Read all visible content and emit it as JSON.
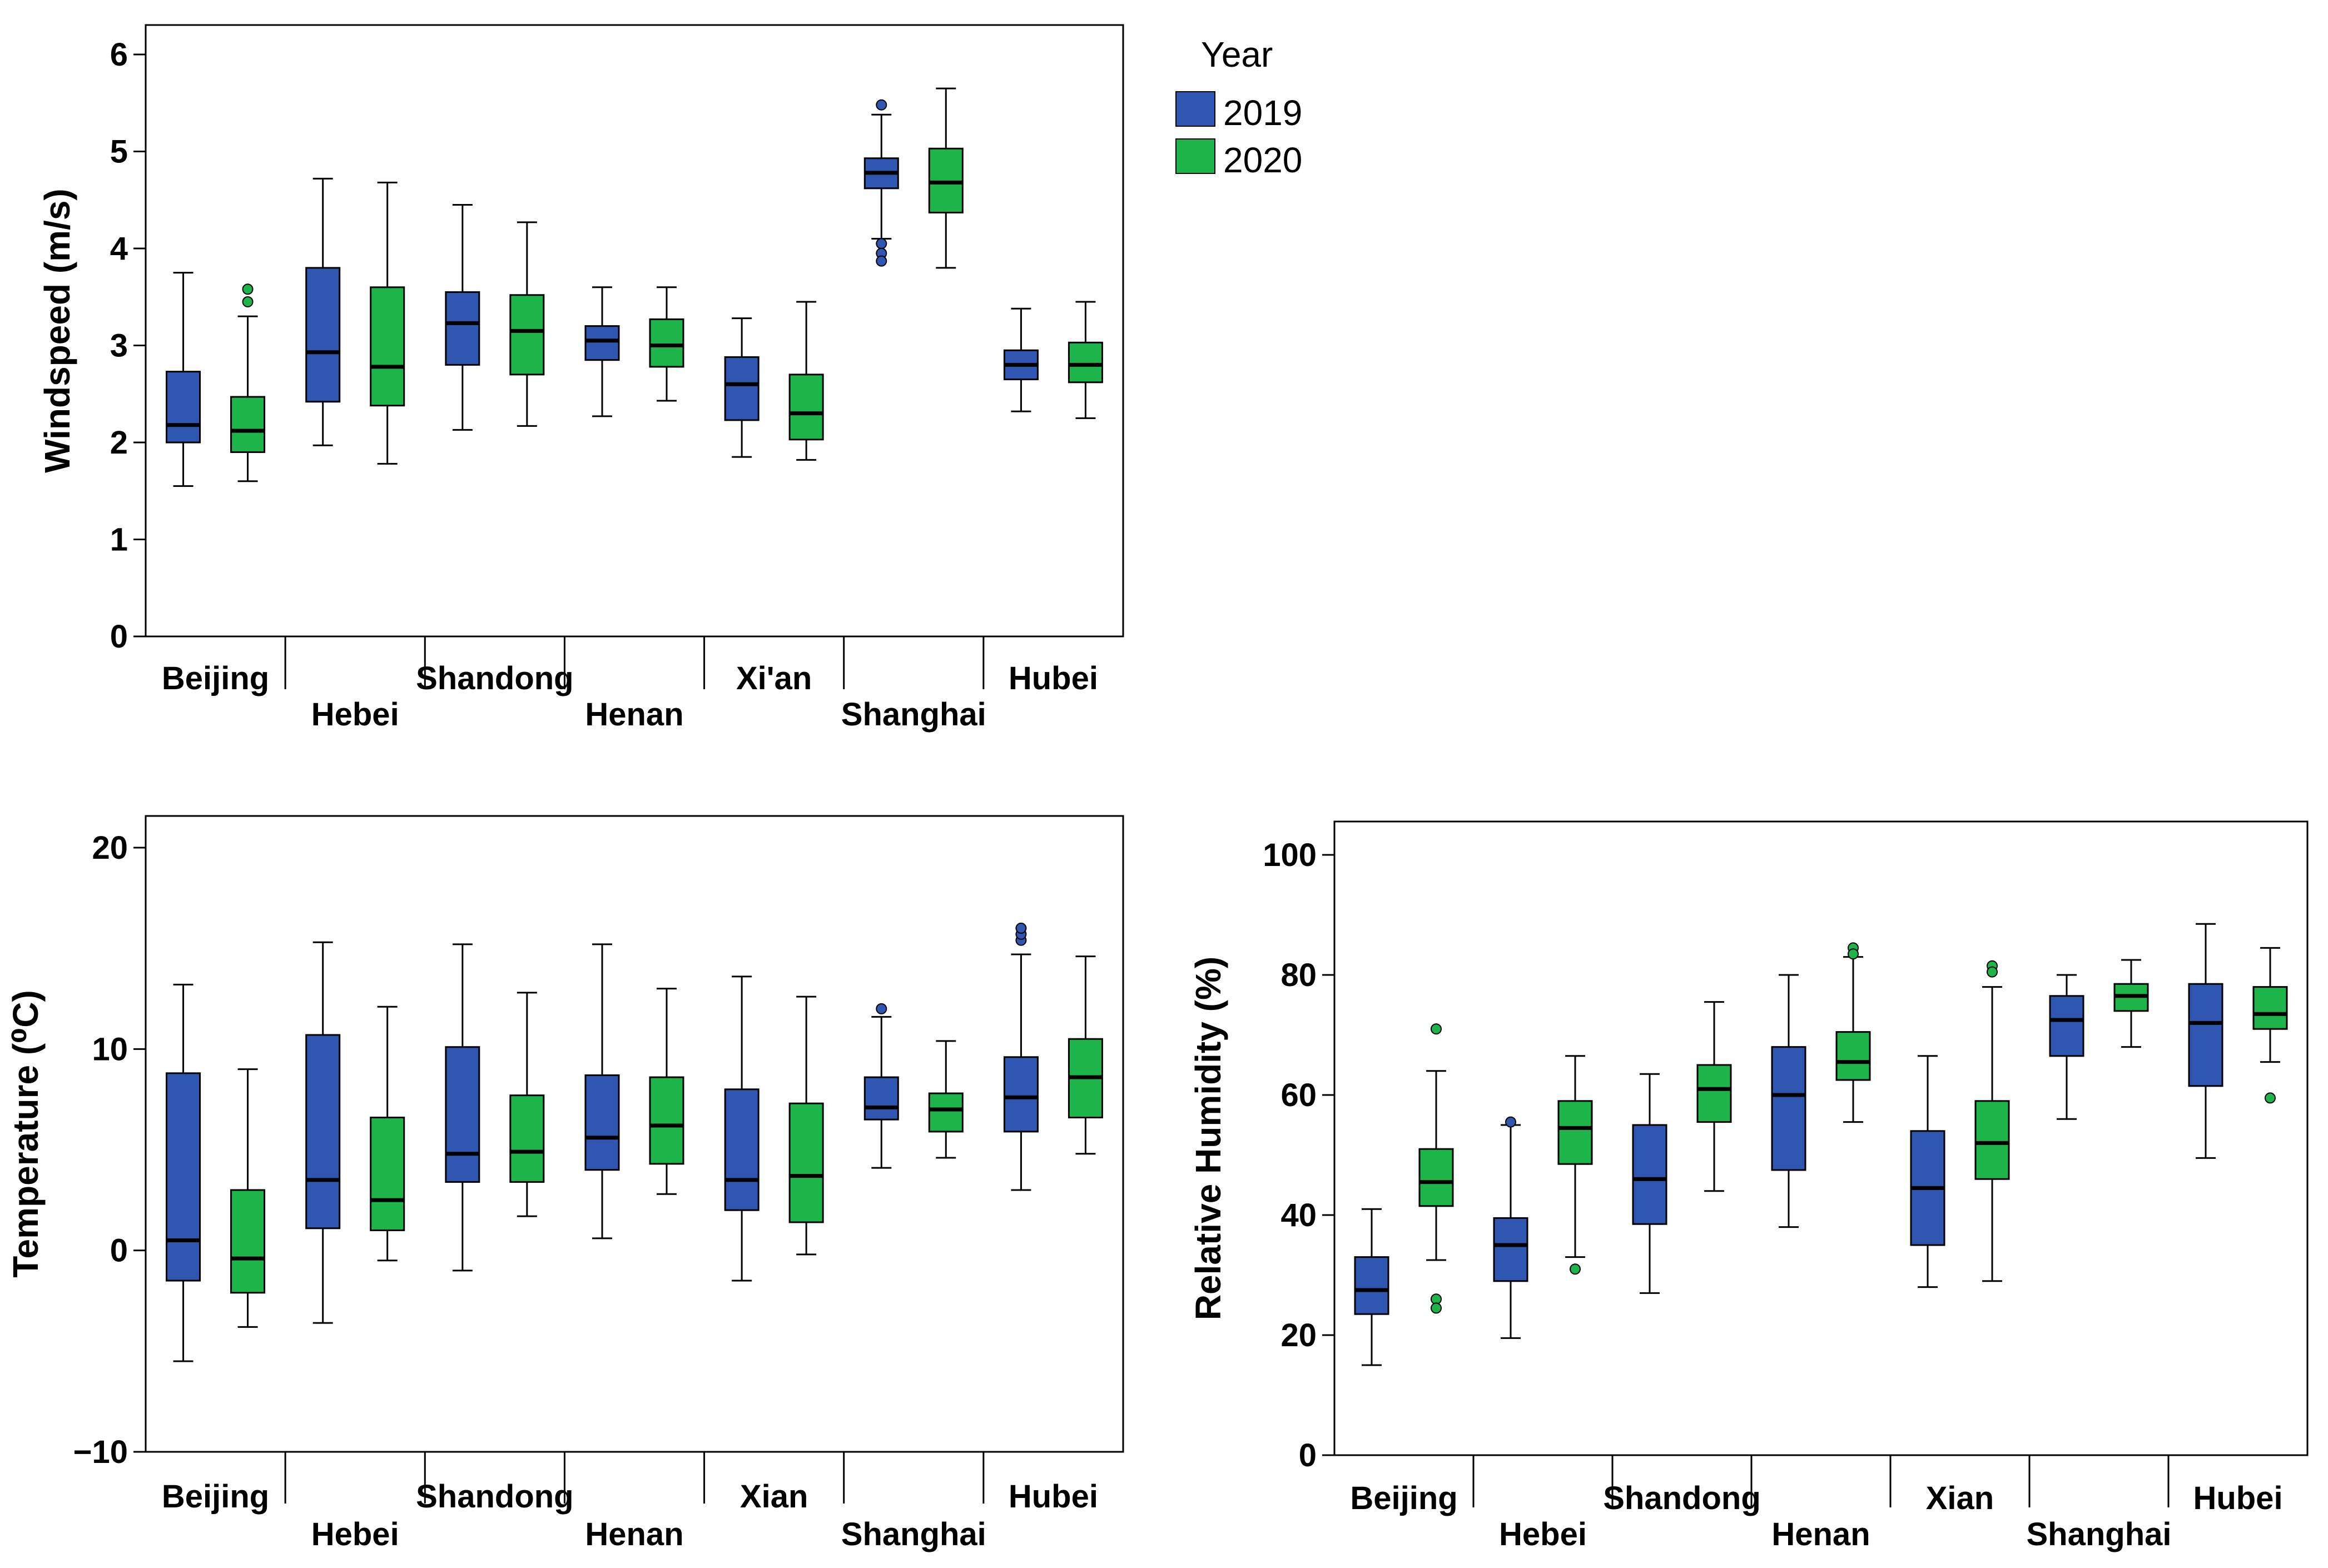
{
  "legend": {
    "title": "Year",
    "items": [
      {
        "label": "2019",
        "color": "#2F56B0"
      },
      {
        "label": "2020",
        "color": "#1DB54A"
      }
    ]
  },
  "chart_data": [
    {
      "type": "boxplot",
      "id": "windspeed",
      "ylabel": "Windspeed (m/s)",
      "xlabel": "",
      "ylim": [
        0,
        6
      ],
      "yticks": [
        0,
        1,
        2,
        3,
        4,
        5,
        6
      ],
      "categories": [
        "Beijing",
        "Hebei",
        "Shandong",
        "Henan",
        "Xi'an",
        "Shanghai",
        "Hubei"
      ],
      "series": [
        {
          "name": "2019",
          "boxes": [
            {
              "min": 1.55,
              "q1": 2.0,
              "median": 2.18,
              "q3": 2.73,
              "max": 3.75,
              "outliers": []
            },
            {
              "min": 1.97,
              "q1": 2.42,
              "median": 2.93,
              "q3": 3.8,
              "max": 4.72,
              "outliers": []
            },
            {
              "min": 2.13,
              "q1": 2.8,
              "median": 3.23,
              "q3": 3.55,
              "max": 4.45,
              "outliers": []
            },
            {
              "min": 2.27,
              "q1": 2.85,
              "median": 3.05,
              "q3": 3.2,
              "max": 3.6,
              "outliers": []
            },
            {
              "min": 1.85,
              "q1": 2.23,
              "median": 2.6,
              "q3": 2.88,
              "max": 3.28,
              "outliers": []
            },
            {
              "min": 4.1,
              "q1": 4.62,
              "median": 4.78,
              "q3": 4.93,
              "max": 5.38,
              "outliers": [
                5.48,
                4.05,
                3.95,
                3.87
              ]
            },
            {
              "min": 2.32,
              "q1": 2.65,
              "median": 2.8,
              "q3": 2.95,
              "max": 3.38,
              "outliers": []
            }
          ]
        },
        {
          "name": "2020",
          "boxes": [
            {
              "min": 1.6,
              "q1": 1.9,
              "median": 2.12,
              "q3": 2.47,
              "max": 3.3,
              "outliers": [
                3.45,
                3.58
              ]
            },
            {
              "min": 1.78,
              "q1": 2.38,
              "median": 2.78,
              "q3": 3.6,
              "max": 4.68,
              "outliers": []
            },
            {
              "min": 2.17,
              "q1": 2.7,
              "median": 3.15,
              "q3": 3.52,
              "max": 4.27,
              "outliers": []
            },
            {
              "min": 2.43,
              "q1": 2.78,
              "median": 3.0,
              "q3": 3.27,
              "max": 3.6,
              "outliers": []
            },
            {
              "min": 1.82,
              "q1": 2.03,
              "median": 2.3,
              "q3": 2.7,
              "max": 3.45,
              "outliers": []
            },
            {
              "min": 3.8,
              "q1": 4.37,
              "median": 4.68,
              "q3": 5.03,
              "max": 5.65,
              "outliers": []
            },
            {
              "min": 2.25,
              "q1": 2.62,
              "median": 2.8,
              "q3": 3.03,
              "max": 3.45,
              "outliers": []
            }
          ]
        }
      ]
    },
    {
      "type": "boxplot",
      "id": "temperature",
      "ylabel": "Temperature (⁰C)",
      "xlabel": "",
      "ylim": [
        -10,
        20
      ],
      "yticks": [
        -10,
        0,
        10,
        20
      ],
      "categories": [
        "Beijing",
        "Hebei",
        "Shandong",
        "Henan",
        "Xian",
        "Shanghai",
        "Hubei"
      ],
      "series": [
        {
          "name": "2019",
          "boxes": [
            {
              "min": -5.5,
              "q1": -1.5,
              "median": 0.5,
              "q3": 8.8,
              "max": 13.2,
              "outliers": []
            },
            {
              "min": -3.6,
              "q1": 1.1,
              "median": 3.5,
              "q3": 10.7,
              "max": 15.3,
              "outliers": []
            },
            {
              "min": -1.0,
              "q1": 3.4,
              "median": 4.8,
              "q3": 10.1,
              "max": 15.2,
              "outliers": []
            },
            {
              "min": 0.6,
              "q1": 4.0,
              "median": 5.6,
              "q3": 8.7,
              "max": 15.2,
              "outliers": []
            },
            {
              "min": -1.5,
              "q1": 2.0,
              "median": 3.5,
              "q3": 8.0,
              "max": 13.6,
              "outliers": []
            },
            {
              "min": 4.1,
              "q1": 6.5,
              "median": 7.1,
              "q3": 8.6,
              "max": 11.6,
              "outliers": [
                12.0
              ]
            },
            {
              "min": 3.0,
              "q1": 5.9,
              "median": 7.6,
              "q3": 9.6,
              "max": 14.7,
              "outliers": [
                15.4,
                15.7,
                16.0
              ]
            }
          ]
        },
        {
          "name": "2020",
          "boxes": [
            {
              "min": -3.8,
              "q1": -2.1,
              "median": -0.4,
              "q3": 3.0,
              "max": 9.0,
              "outliers": []
            },
            {
              "min": -0.5,
              "q1": 1.0,
              "median": 2.5,
              "q3": 6.6,
              "max": 12.1,
              "outliers": []
            },
            {
              "min": 1.7,
              "q1": 3.4,
              "median": 4.9,
              "q3": 7.7,
              "max": 12.8,
              "outliers": []
            },
            {
              "min": 2.8,
              "q1": 4.3,
              "median": 6.2,
              "q3": 8.6,
              "max": 13.0,
              "outliers": []
            },
            {
              "min": -0.2,
              "q1": 1.4,
              "median": 3.7,
              "q3": 7.3,
              "max": 12.6,
              "outliers": []
            },
            {
              "min": 4.6,
              "q1": 5.9,
              "median": 7.0,
              "q3": 7.8,
              "max": 10.4,
              "outliers": []
            },
            {
              "min": 4.8,
              "q1": 6.6,
              "median": 8.6,
              "q3": 10.5,
              "max": 14.6,
              "outliers": []
            }
          ]
        }
      ]
    },
    {
      "type": "boxplot",
      "id": "humidity",
      "ylabel": "Relative Humidity (%)",
      "xlabel": "",
      "ylim": [
        0,
        100
      ],
      "yticks": [
        0,
        20,
        40,
        60,
        80,
        100
      ],
      "categories": [
        "Beijing",
        "Hebei",
        "Shandong",
        "Henan",
        "Xian",
        "Shanghai",
        "Hubei"
      ],
      "series": [
        {
          "name": "2019",
          "boxes": [
            {
              "min": 15,
              "q1": 23.5,
              "median": 27.5,
              "q3": 33,
              "max": 41,
              "outliers": []
            },
            {
              "min": 19.5,
              "q1": 29,
              "median": 35,
              "q3": 39.5,
              "max": 55,
              "outliers": [
                55.5
              ]
            },
            {
              "min": 27,
              "q1": 38.5,
              "median": 46,
              "q3": 55,
              "max": 63.5,
              "outliers": []
            },
            {
              "min": 38,
              "q1": 47.5,
              "median": 60,
              "q3": 68,
              "max": 80,
              "outliers": []
            },
            {
              "min": 28,
              "q1": 35,
              "median": 44.5,
              "q3": 54,
              "max": 66.5,
              "outliers": []
            },
            {
              "min": 56,
              "q1": 66.5,
              "median": 72.5,
              "q3": 76.5,
              "max": 80,
              "outliers": []
            },
            {
              "min": 49.5,
              "q1": 61.5,
              "median": 72,
              "q3": 78.5,
              "max": 88.5,
              "outliers": []
            }
          ]
        },
        {
          "name": "2020",
          "boxes": [
            {
              "min": 32.5,
              "q1": 41.5,
              "median": 45.5,
              "q3": 51,
              "max": 64,
              "outliers": [
                71,
                26,
                24.5
              ]
            },
            {
              "min": 33,
              "q1": 48.5,
              "median": 54.5,
              "q3": 59,
              "max": 66.5,
              "outliers": [
                31
              ]
            },
            {
              "min": 44,
              "q1": 55.5,
              "median": 61,
              "q3": 65,
              "max": 75.5,
              "outliers": []
            },
            {
              "min": 55.5,
              "q1": 62.5,
              "median": 65.5,
              "q3": 70.5,
              "max": 83,
              "outliers": [
                84.5,
                83.5
              ]
            },
            {
              "min": 29,
              "q1": 46,
              "median": 52,
              "q3": 59,
              "max": 78,
              "outliers": [
                81.5,
                80.5
              ]
            },
            {
              "min": 68,
              "q1": 74,
              "median": 76.5,
              "q3": 78.5,
              "max": 82.5,
              "outliers": []
            },
            {
              "min": 65.5,
              "q1": 71,
              "median": 73.5,
              "q3": 78,
              "max": 84.5,
              "outliers": [
                59.5
              ]
            }
          ]
        }
      ]
    }
  ]
}
